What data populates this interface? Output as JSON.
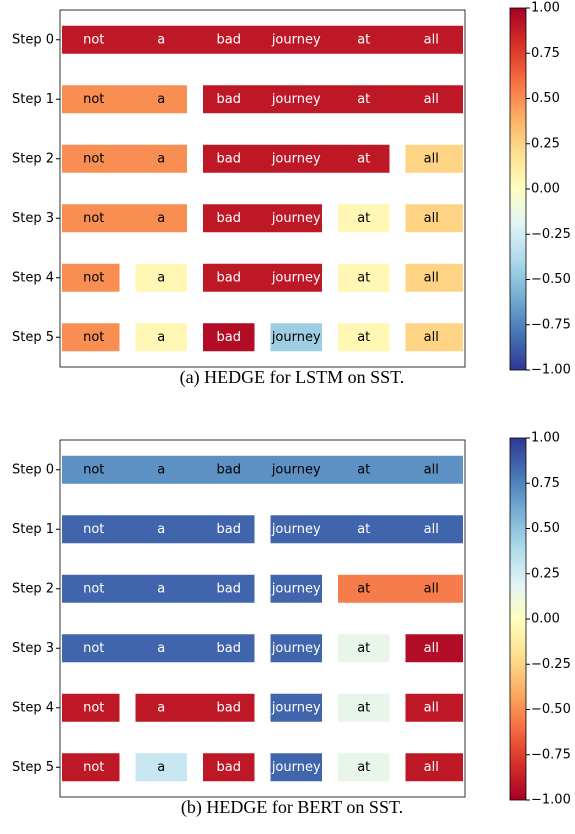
{
  "chart_data": [
    {
      "type": "heatmap",
      "caption": "(a) HEDGE for LSTM on SST.",
      "colormap": "RdYlBu_r",
      "words": [
        "not",
        "a",
        "bad",
        "journey",
        "at",
        "all"
      ],
      "clim": [
        -1,
        1
      ],
      "cticks": [
        {
          "value": 1,
          "label": "1.00"
        },
        0.75,
        {
          "value": 0.5,
          "label": "0.50"
        },
        0.25,
        {
          "value": 0,
          "label": "0.00"
        },
        {
          "value": -0.25,
          "label": "−0.25"
        },
        {
          "value": -0.5,
          "label": "−0.50"
        },
        {
          "value": -0.75,
          "label": "−0.75"
        },
        {
          "value": -1,
          "label": "−1.00"
        }
      ],
      "rows": [
        {
          "label": "Step 0",
          "segments": [
            {
              "span": [
                0,
                5
              ],
              "value": 0.9
            }
          ]
        },
        {
          "label": "Step 1",
          "segments": [
            {
              "span": [
                0,
                1
              ],
              "value": 0.5
            },
            {
              "span": [
                2,
                5
              ],
              "value": 0.9
            }
          ]
        },
        {
          "label": "Step 2",
          "segments": [
            {
              "span": [
                0,
                1
              ],
              "value": 0.5
            },
            {
              "span": [
                2,
                4
              ],
              "value": 0.9
            },
            {
              "span": [
                5,
                5
              ],
              "value": 0.25
            }
          ]
        },
        {
          "label": "Step 3",
          "segments": [
            {
              "span": [
                0,
                1
              ],
              "value": 0.5
            },
            {
              "span": [
                2,
                3
              ],
              "value": 0.9
            },
            {
              "span": [
                4,
                4
              ],
              "value": 0.05
            },
            {
              "span": [
                5,
                5
              ],
              "value": 0.25
            }
          ]
        },
        {
          "label": "Step 4",
          "segments": [
            {
              "span": [
                0,
                0
              ],
              "value": 0.5
            },
            {
              "span": [
                1,
                1
              ],
              "value": 0.05
            },
            {
              "span": [
                2,
                3
              ],
              "value": 0.9
            },
            {
              "span": [
                4,
                4
              ],
              "value": 0.05
            },
            {
              "span": [
                5,
                5
              ],
              "value": 0.25
            }
          ]
        },
        {
          "label": "Step 5",
          "segments": [
            {
              "span": [
                0,
                0
              ],
              "value": 0.5
            },
            {
              "span": [
                1,
                1
              ],
              "value": 0.05
            },
            {
              "span": [
                2,
                2
              ],
              "value": 0.95
            },
            {
              "span": [
                3,
                3
              ],
              "value": -0.45
            },
            {
              "span": [
                4,
                4
              ],
              "value": 0.05
            },
            {
              "span": [
                5,
                5
              ],
              "value": 0.25
            }
          ]
        }
      ]
    },
    {
      "type": "heatmap",
      "caption": "(b) HEDGE for BERT on SST.",
      "colormap": "RdYlBu",
      "words": [
        "not",
        "a",
        "bad",
        "journey",
        "at",
        "all"
      ],
      "clim": [
        -1,
        1
      ],
      "cticks": [
        {
          "value": 1,
          "label": "1.00"
        },
        0.75,
        {
          "value": 0.5,
          "label": "0.50"
        },
        0.25,
        {
          "value": 0,
          "label": "0.00"
        },
        {
          "value": -0.25,
          "label": "−0.25"
        },
        {
          "value": -0.5,
          "label": "−0.50"
        },
        {
          "value": -0.75,
          "label": "−0.75"
        },
        {
          "value": -1,
          "label": "−1.00"
        }
      ],
      "rows": [
        {
          "label": "Step 0",
          "segments": [
            {
              "span": [
                0,
                5
              ],
              "value": 0.7
            }
          ]
        },
        {
          "label": "Step 1",
          "segments": [
            {
              "span": [
                0,
                2
              ],
              "value": 0.85
            },
            {
              "span": [
                3,
                5
              ],
              "value": 0.85
            }
          ]
        },
        {
          "label": "Step 2",
          "segments": [
            {
              "span": [
                0,
                2
              ],
              "value": 0.85
            },
            {
              "span": [
                3,
                3
              ],
              "value": 0.85
            },
            {
              "span": [
                4,
                5
              ],
              "value": -0.55
            }
          ]
        },
        {
          "label": "Step 3",
          "segments": [
            {
              "span": [
                0,
                2
              ],
              "value": 0.85
            },
            {
              "span": [
                3,
                3
              ],
              "value": 0.85
            },
            {
              "span": [
                4,
                4
              ],
              "value": 0.15
            },
            {
              "span": [
                5,
                5
              ],
              "value": -0.95
            }
          ]
        },
        {
          "label": "Step 4",
          "segments": [
            {
              "span": [
                0,
                0
              ],
              "value": -0.9
            },
            {
              "span": [
                1,
                2
              ],
              "value": -0.9
            },
            {
              "span": [
                3,
                3
              ],
              "value": 0.85
            },
            {
              "span": [
                4,
                4
              ],
              "value": 0.15
            },
            {
              "span": [
                5,
                5
              ],
              "value": -0.9
            }
          ]
        },
        {
          "label": "Step 5",
          "segments": [
            {
              "span": [
                0,
                0
              ],
              "value": -0.9
            },
            {
              "span": [
                1,
                1
              ],
              "value": 0.3
            },
            {
              "span": [
                2,
                2
              ],
              "value": -0.9
            },
            {
              "span": [
                3,
                3
              ],
              "value": 0.85
            },
            {
              "span": [
                4,
                4
              ],
              "value": 0.15
            },
            {
              "span": [
                5,
                5
              ],
              "value": -0.9
            }
          ]
        }
      ]
    }
  ]
}
